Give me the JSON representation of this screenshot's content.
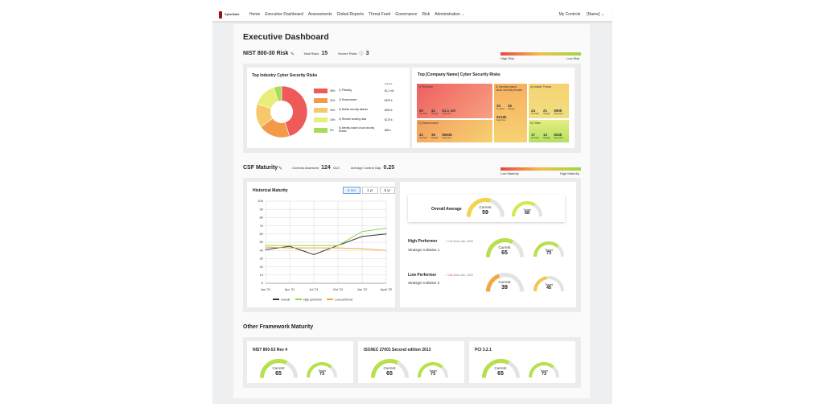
{
  "nav": {
    "logo_text": "CyberSaint",
    "items": [
      "Home",
      "Executive Dashboard",
      "Assessments",
      "Global Reports",
      "Threat Feed",
      "Governance",
      "Risk",
      "Administration"
    ],
    "right": [
      "My Controls",
      "[Name]"
    ]
  },
  "page_title": "Executive Dashboard",
  "nist_risk": {
    "title": "NIST 800-30 Risk",
    "total_label": "Total Risks",
    "total_value": "15",
    "severe_label": "Severe Risks",
    "severe_value": "3",
    "legend_high": "High Risk",
    "legend_low": "Low Risk"
  },
  "industry_risks": {
    "title": "Top Industry Cyber Security Risks",
    "col_header": "Avg loss",
    "items": [
      {
        "pct": "45%",
        "label": "1) Phishing",
        "value": "$1.2 mil",
        "color": "#ee5a5a",
        "share": 45
      },
      {
        "pct": "20%",
        "label": "2) Ransomware",
        "value": "$575 k",
        "color": "#f39a4a",
        "share": 20
      },
      {
        "pct": "15%",
        "label": "3) Mobile security attacks",
        "value": "$253 k",
        "color": "#f6c86a",
        "share": 15
      },
      {
        "pct": "15%",
        "label": "4) Remote working risks",
        "value": "$175 k",
        "color": "#e9ee7a",
        "share": 15
      },
      {
        "pct": "5%",
        "label": "5) Identity-based cloud security threats",
        "value": "$85 k",
        "color": "#a6dc5a",
        "share": 5
      }
    ]
  },
  "company_risks": {
    "title": "Top [Company Name] Cyber Security Risks",
    "current_label": "Current",
    "target_label": "Target",
    "loss_label": "Avg loss",
    "cells": [
      {
        "name": "1) Phishing",
        "current": "60",
        "target": "42",
        "loss": "$1.1 mil"
      },
      {
        "name": "2) Ransomware",
        "current": "41",
        "target": "36",
        "loss": "$563k"
      },
      {
        "name": "3) Identity-based cloud security threats",
        "current": "30",
        "target": "25",
        "loss": "$219k"
      },
      {
        "name": "4) Insider Threat",
        "current": "24",
        "target": "21",
        "loss": "$90k"
      },
      {
        "name": "5) Other",
        "current": "17",
        "target": "13",
        "loss": "$53k"
      }
    ]
  },
  "csf": {
    "title": "CSF Maturity",
    "controls_label": "Controls Assessed",
    "controls_value": "124",
    "controls_total": "/313",
    "gap_label": "Average Control Gap",
    "gap_value": "0.25",
    "legend_low": "Low Maturity",
    "legend_high": "High Maturity"
  },
  "historical": {
    "title": "Historical Maturity",
    "tabs": [
      "6 mo",
      "1 yr",
      "5 yr"
    ],
    "active_tab": "6 mo"
  },
  "chart_data": {
    "type": "line",
    "title": "Historical Maturity",
    "categories": [
      "Jan '21",
      "Apr '21",
      "Jul '21",
      "Oct '21",
      "Jan '22",
      "April '22"
    ],
    "ylim": [
      0,
      100
    ],
    "yticks": [
      0,
      10,
      20,
      30,
      40,
      50,
      60,
      70,
      80,
      90,
      100
    ],
    "grid": true,
    "legend_position": "bottom",
    "series": [
      {
        "name": "Overall",
        "color": "#333333",
        "values": [
          41,
          45,
          35,
          46,
          57,
          60
        ]
      },
      {
        "name": "High performer",
        "color": "#8ed64a",
        "values": [
          46,
          46,
          46,
          46,
          63,
          67
        ]
      },
      {
        "name": "Low performer",
        "color": "#f2a93a",
        "values": [
          44,
          43,
          43,
          43,
          42,
          40
        ]
      }
    ]
  },
  "overall": {
    "label": "Overall Average",
    "current_label": "Current",
    "current": "59",
    "target_label": "Target",
    "target": "68"
  },
  "high_performer": {
    "title": "High Performer",
    "delta": "↑ 6.05",
    "since": "since Jan, 2022",
    "subtitle": "Strategic Initiative 1",
    "current": "65",
    "target": "73"
  },
  "low_performer": {
    "title": "Low Performer",
    "delta": "↓ 3.80",
    "since": "since Jan, 2022",
    "subtitle": "Strategic Initiative 2",
    "current": "39",
    "target": "45"
  },
  "other_frameworks": {
    "title": "Other Framework Maturity",
    "items": [
      {
        "name": "NIST 800-53 Rev 4",
        "current": "65",
        "target": "73"
      },
      {
        "name": "ISO/IEC 27001 Second edition 2013",
        "current": "65",
        "target": "73"
      },
      {
        "name": "PCI 3.2.1",
        "current": "65",
        "target": "73"
      }
    ]
  },
  "labels": {
    "current": "Current",
    "target": "Target"
  }
}
